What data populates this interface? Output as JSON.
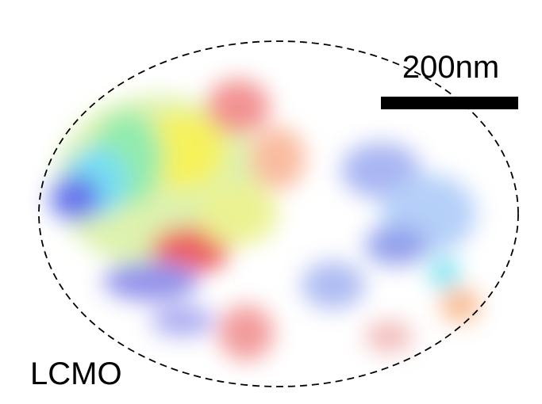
{
  "scale_bar": {
    "label": "200nm"
  },
  "sample_label": "LCMO"
}
